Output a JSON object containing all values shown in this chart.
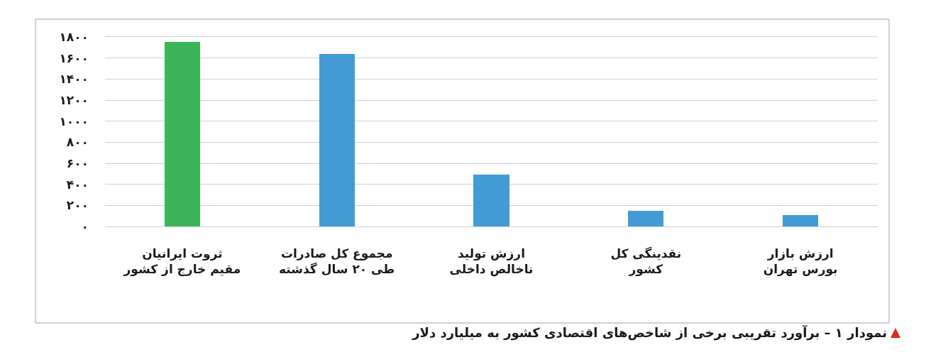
{
  "chart_data": {
    "type": "bar",
    "title": "نمودار ۱ – برآورد تقریبی برخی از شاخص‌های اقتصادی کشور به میلیارد دلار",
    "categories": [
      "ثروت ایرانیان\nمقیم خارج از کشور",
      "مجموع کل صادرات\nطی ۲۰ سال گذشته",
      "ارزش تولید\nناخالص داخلی",
      "نقدینگی کل\nکشور",
      "ارزش بازار\nبورس تهران"
    ],
    "values": [
      1750,
      1640,
      495,
      150,
      105
    ],
    "colors": [
      "#3cb55a",
      "#429bd4",
      "#429bd4",
      "#429bd4",
      "#429bd4"
    ],
    "ylim": [
      0,
      1800
    ],
    "yticks": [
      {
        "value": 0,
        "label": "۰"
      },
      {
        "value": 200,
        "label": "۲۰۰"
      },
      {
        "value": 400,
        "label": "۴۰۰"
      },
      {
        "value": 600,
        "label": "۶۰۰"
      },
      {
        "value": 800,
        "label": "۸۰۰"
      },
      {
        "value": 1000,
        "label": "۱۰۰۰"
      },
      {
        "value": 1200,
        "label": "۱۲۰۰"
      },
      {
        "value": 1400,
        "label": "۱۴۰۰"
      },
      {
        "value": 1600,
        "label": "۱۶۰۰"
      },
      {
        "value": 1800,
        "label": "۱۸۰۰"
      }
    ],
    "grid": "y"
  }
}
